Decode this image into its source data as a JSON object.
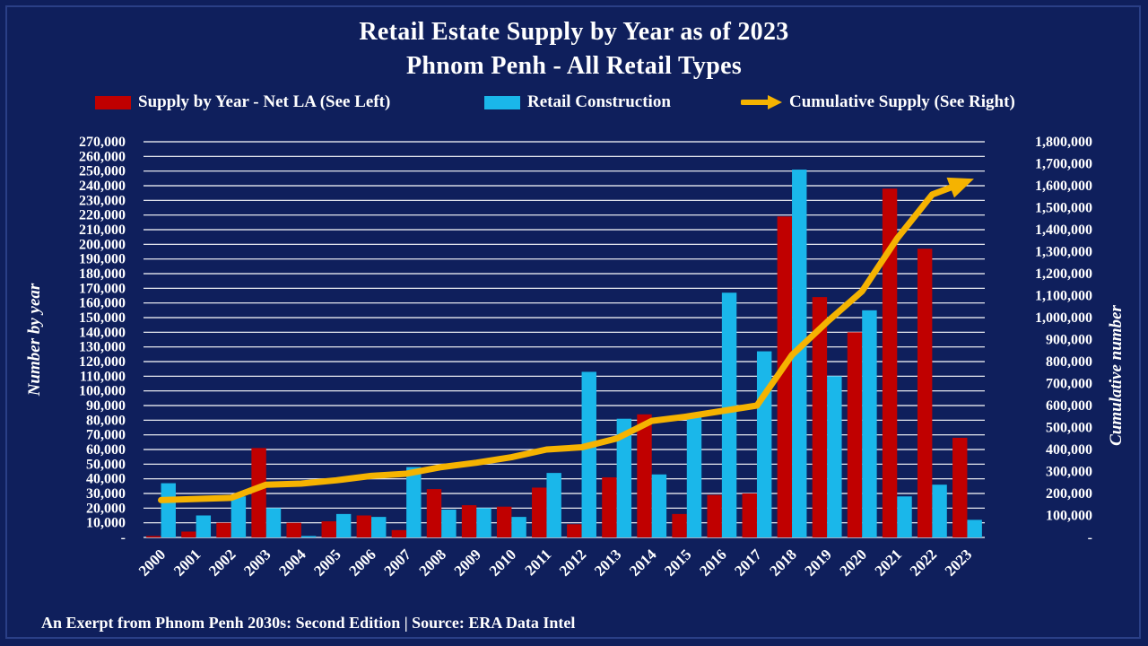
{
  "chart_data": {
    "type": "bar+line",
    "title": "Retail Estate Supply by Year as of 2023",
    "subtitle": "Phnom Penh - All Retail Types",
    "categories": [
      "2000",
      "2001",
      "2002",
      "2003",
      "2004",
      "2005",
      "2006",
      "2007",
      "2008",
      "2009",
      "2010",
      "2011",
      "2012",
      "2013",
      "2014",
      "2015",
      "2016",
      "2017",
      "2018",
      "2019",
      "2020",
      "2021",
      "2022",
      "2023"
    ],
    "series": [
      {
        "name": "Supply by Year - Net LA (See Left)",
        "type": "bar",
        "axis": "left",
        "color": "#c00000",
        "values": [
          1000,
          4000,
          10000,
          61000,
          10000,
          11000,
          15000,
          5000,
          33000,
          22000,
          21000,
          34000,
          9000,
          41000,
          84000,
          16000,
          29000,
          30000,
          219000,
          164000,
          140000,
          238000,
          197000,
          68000
        ]
      },
      {
        "name": "Retail Construction",
        "type": "bar",
        "axis": "left",
        "color": "#1ab7ea",
        "values": [
          37000,
          15000,
          28000,
          20000,
          1000,
          16000,
          14000,
          48000,
          19000,
          20000,
          14000,
          44000,
          113000,
          81000,
          43000,
          84000,
          167000,
          127000,
          251000,
          110000,
          155000,
          28000,
          36000,
          12000
        ]
      },
      {
        "name": "Cumulative Supply (See Right)",
        "type": "line",
        "axis": "right",
        "color": "#f5b301",
        "values": [
          170000,
          175000,
          180000,
          240000,
          245000,
          260000,
          280000,
          290000,
          320000,
          340000,
          365000,
          400000,
          410000,
          450000,
          530000,
          550000,
          575000,
          600000,
          830000,
          980000,
          1120000,
          1360000,
          1560000,
          1620000
        ]
      }
    ],
    "left_axis": {
      "label": "Number by year",
      "min": 0,
      "max": 270000,
      "step": 10000,
      "ticks": [
        "-",
        "10,000",
        "20,000",
        "30,000",
        "40,000",
        "50,000",
        "60,000",
        "70,000",
        "80,000",
        "90,000",
        "100,000",
        "110,000",
        "120,000",
        "130,000",
        "140,000",
        "150,000",
        "160,000",
        "170,000",
        "180,000",
        "190,000",
        "200,000",
        "210,000",
        "220,000",
        "230,000",
        "240,000",
        "250,000",
        "260,000",
        "270,000"
      ]
    },
    "right_axis": {
      "label": "Cumulative number",
      "min": 0,
      "max": 1800000,
      "step": 100000,
      "ticks": [
        "-",
        "100,000",
        "200,000",
        "300,000",
        "400,000",
        "500,000",
        "600,000",
        "700,000",
        "800,000",
        "900,000",
        "1,000,000",
        "1,100,000",
        "1,200,000",
        "1,300,000",
        "1,400,000",
        "1,500,000",
        "1,600,000",
        "1,700,000",
        "1,800,000"
      ]
    },
    "grid": true,
    "legend_position": "top"
  },
  "footer": "An Exerpt from Phnom Penh 2030s: Second Edition | Source: ERA Data Intel"
}
